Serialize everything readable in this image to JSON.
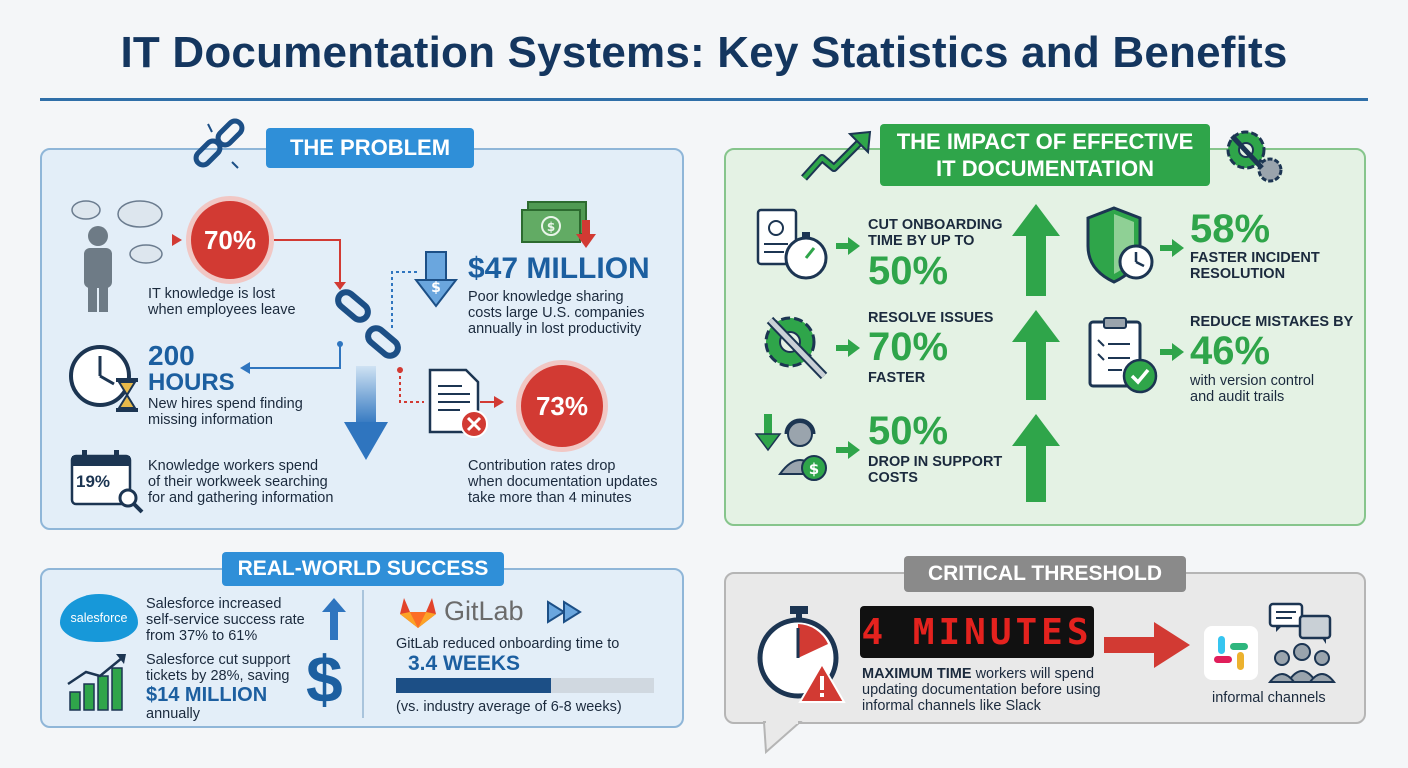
{
  "title": "IT Documentation Systems: Key Statistics and Benefits",
  "colors": {
    "navy": "#14365f",
    "blue": "#2f8fd8",
    "green": "#2fa54a",
    "red": "#d23a33",
    "gray": "#8a8a8a"
  },
  "problem": {
    "header": "THE PROBLEM",
    "stat1": {
      "value": "70%",
      "text1": "IT knowledge is lost",
      "text2": "when employees leave"
    },
    "stat2": {
      "value": "$47 MILLION",
      "text1": "Poor knowledge sharing",
      "text2": "costs large U.S. companies",
      "text3": "annually in lost productivity"
    },
    "stat3": {
      "value1": "200",
      "value2": "HOURS",
      "text1": "New hires spend finding",
      "text2": "missing information"
    },
    "stat4": {
      "value": "73%",
      "text1": "Contribution rates drop",
      "text2": "when documentation updates",
      "text3": "take more than 4 minutes"
    },
    "stat5": {
      "value": "19%",
      "text1": "Knowledge workers spend",
      "text2": "of their workweek searching",
      "text3": "for and gathering information"
    }
  },
  "impact": {
    "header1": "THE IMPACT OF EFFECTIVE",
    "header2": "IT DOCUMENTATION",
    "i1": {
      "label1": "CUT ONBOARDING",
      "label2": "TIME BY UP TO",
      "value": "50%"
    },
    "i2": {
      "label": "RESOLVE ISSUES",
      "value": "70%",
      "label2": "FASTER"
    },
    "i3": {
      "value": "50%",
      "label1": "DROP IN SUPPORT",
      "label2": "COSTS"
    },
    "i4": {
      "value": "58%",
      "label1": "FASTER INCIDENT",
      "label2": "RESOLUTION"
    },
    "i5": {
      "label": "REDUCE MISTAKES BY",
      "value": "46%",
      "text1": "with version control",
      "text2": "and audit trails"
    }
  },
  "success": {
    "header": "REAL-WORLD SUCCESS",
    "salesforce_logo": "salesforce",
    "s1": {
      "text1": "Salesforce increased",
      "text2": "self-service success rate",
      "text3": "from 37% to 61%"
    },
    "s2": {
      "text1": "Salesforce cut support",
      "text2": "tickets by 28%, saving",
      "value": "$14 MILLION",
      "text3": "annually"
    },
    "gitlab_logo": "GitLab",
    "g1": {
      "text1": "GitLab reduced onboarding time to",
      "value": "3.4 WEEKS",
      "note": "(vs. industry average of 6-8 weeks)",
      "progress": 0.6
    }
  },
  "critical": {
    "header": "CRITICAL THRESHOLD",
    "display": "4 MINUTES",
    "text_bold": "MAXIMUM TIME",
    "text1": " workers will spend",
    "text2": "updating documentation before using",
    "text3": "informal channels like Slack",
    "channels_label": "informal channels"
  }
}
